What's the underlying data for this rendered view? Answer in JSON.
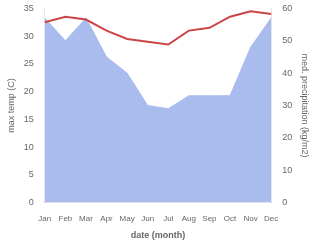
{
  "chart_data": {
    "type": "line",
    "xlabel": "date (month)",
    "ylabel": "max temp (C)",
    "y2label": "med. precipitation (kg/m2)",
    "categories": [
      "Jan",
      "Feb",
      "Mar",
      "Apr",
      "May",
      "Jun",
      "Jul",
      "Aug",
      "Sep",
      "Oct",
      "Nov",
      "Dec"
    ],
    "series": [
      {
        "type": "area",
        "axis": "y2",
        "color": "#aabbee",
        "values": [
          57.0,
          50.0,
          57.0,
          45.0,
          40.0,
          30.0,
          29.0,
          33.0,
          33.0,
          33.0,
          48.0,
          57.0
        ]
      },
      {
        "type": "line",
        "color": "#cc4444",
        "values": [
          32.5,
          33.5,
          33.0,
          31.0,
          29.5,
          29.0,
          28.5,
          31.0,
          31.5,
          33.5,
          34.5,
          34.0
        ]
      }
    ],
    "ylim": [
      0,
      35
    ],
    "yticks": [
      0,
      5,
      10,
      15,
      20,
      25,
      30,
      35
    ],
    "y2lim": [
      0,
      60
    ],
    "y2ticks": [
      0,
      10,
      20,
      30,
      40,
      50,
      60
    ],
    "grid": false
  }
}
